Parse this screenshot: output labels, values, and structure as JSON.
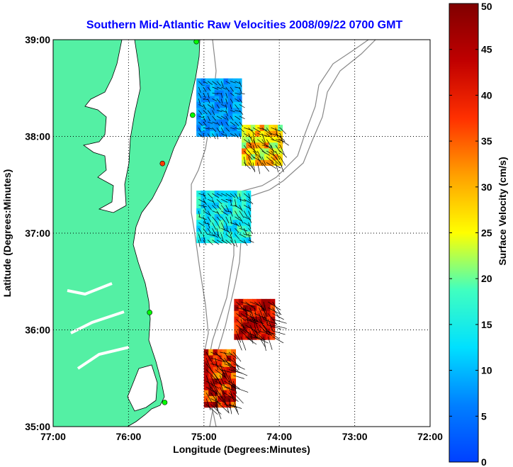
{
  "chart_data": {
    "type": "heatmap",
    "title": "Southern Mid-Atlantic Raw Velocities 2008/09/22 0700 GMT",
    "xlabel": "Longitude (Degrees:Minutes)",
    "ylabel": "Latitude (Degrees:Minutes)",
    "x_ticks": [
      {
        "value": -77,
        "label": "77:00"
      },
      {
        "value": -76,
        "label": "76:00"
      },
      {
        "value": -75,
        "label": "75:00"
      },
      {
        "value": -74,
        "label": "74:00"
      },
      {
        "value": -73,
        "label": "73:00"
      },
      {
        "value": -72,
        "label": "72:00"
      }
    ],
    "y_ticks": [
      {
        "value": 35,
        "label": "35:00"
      },
      {
        "value": 36,
        "label": "36:00"
      },
      {
        "value": 37,
        "label": "37:00"
      },
      {
        "value": 38,
        "label": "38:00"
      },
      {
        "value": 39,
        "label": "39:00"
      }
    ],
    "xlim": [
      -77,
      -72
    ],
    "ylim": [
      35,
      39
    ],
    "grid": "dotted",
    "colorbar": {
      "label": "Surface Velocity (cm/s)",
      "range": [
        0,
        50
      ],
      "ticks": [
        0,
        5,
        10,
        15,
        20,
        25,
        30,
        35,
        40,
        45,
        50
      ],
      "colormap": "jet"
    },
    "land_color": "#54f0a4",
    "water_color": "#ffffff",
    "regions": [
      {
        "lon": [
          -75.1,
          -74.5
        ],
        "lat": [
          38.0,
          38.6
        ],
        "speed_range": [
          5,
          12
        ]
      },
      {
        "lon": [
          -74.5,
          -74.0
        ],
        "lat": [
          37.7,
          38.1
        ],
        "speed_range": [
          20,
          35
        ]
      },
      {
        "lon": [
          -75.1,
          -74.4
        ],
        "lat": [
          36.9,
          37.4
        ],
        "speed_range": [
          10,
          20
        ]
      },
      {
        "lon": [
          -74.6,
          -74.1
        ],
        "lat": [
          35.9,
          36.3
        ],
        "speed_range": [
          35,
          50
        ]
      },
      {
        "lon": [
          -75.0,
          -74.6
        ],
        "lat": [
          35.2,
          35.8
        ],
        "speed_range": [
          30,
          50
        ]
      }
    ],
    "markers": [
      {
        "lon": -75.1,
        "lat": 38.98,
        "color": "#00ff00"
      },
      {
        "lon": -75.15,
        "lat": 38.22,
        "color": "#00ff00"
      },
      {
        "lon": -75.55,
        "lat": 37.72,
        "color": "#ff3b00"
      },
      {
        "lon": -75.72,
        "lat": 36.18,
        "color": "#00ff00"
      },
      {
        "lon": -75.52,
        "lat": 35.25,
        "color": "#00ff00"
      }
    ]
  }
}
